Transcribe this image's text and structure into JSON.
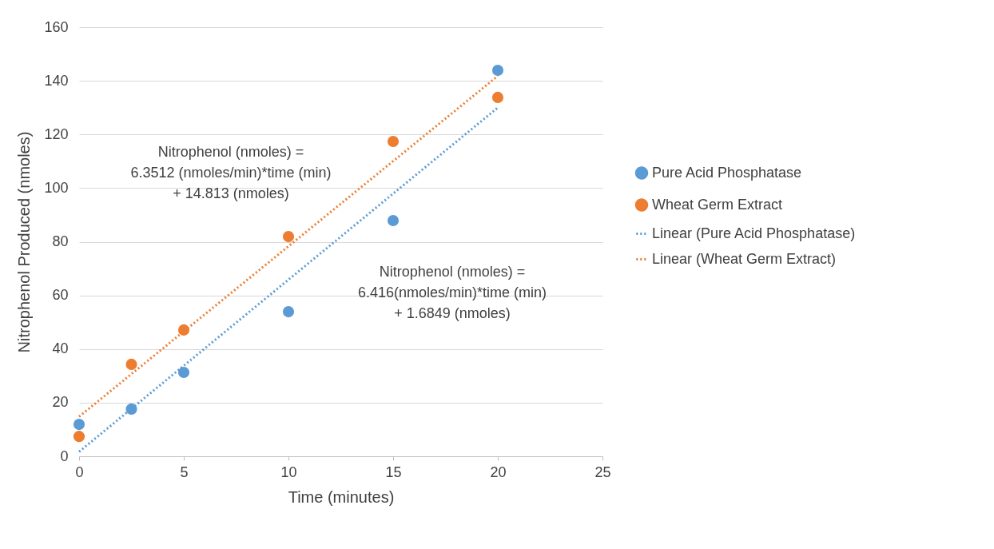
{
  "chart_data": {
    "type": "scatter",
    "xlabel": "Time (minutes)",
    "ylabel": "Nitrophenol Produced (nmoles)",
    "xlim": [
      0,
      25
    ],
    "xticks": [
      0,
      5,
      10,
      15,
      20,
      25
    ],
    "ylim": [
      0,
      160
    ],
    "yticks": [
      0,
      20,
      40,
      60,
      80,
      100,
      120,
      140,
      160
    ],
    "grid": "y",
    "legend": "right",
    "series": [
      {
        "name": "Pure Acid Phosphatase",
        "marker": "circle",
        "color": "#5b9bd5",
        "x": [
          0,
          2.5,
          5,
          10,
          15,
          20
        ],
        "values": [
          11.9,
          17.6,
          31.3,
          53.9,
          87.9,
          143.9
        ]
      },
      {
        "name": "Wheat Germ Extract",
        "marker": "circle",
        "color": "#ed7d31",
        "x": [
          0,
          2.5,
          5,
          10,
          15,
          20
        ],
        "values": [
          7.4,
          34.3,
          47.1,
          81.9,
          117.4,
          133.8
        ]
      },
      {
        "name": "Linear (Pure Acid Phosphatase)",
        "type": "line",
        "line_style": "dotted",
        "marker": "none",
        "color": "#5b9bd5",
        "x": [
          0,
          20
        ],
        "values": [
          1.7,
          130.0
        ]
      },
      {
        "name": "Linear (Wheat Germ Extract)",
        "type": "line",
        "line_style": "dotted",
        "marker": "none",
        "color": "#ed7d31",
        "x": [
          0,
          20
        ],
        "values": [
          14.8,
          141.8
        ]
      }
    ],
    "annotations": [
      "Nitrophenol (nmoles) =\n6.3512 (nmoles/min)*time (min)\n+ 14.813 (nmoles)",
      "Nitrophenol (nmoles) =\n6.416(nmoles/min)*time (min)\n+ 1.6849 (nmoles)"
    ]
  }
}
